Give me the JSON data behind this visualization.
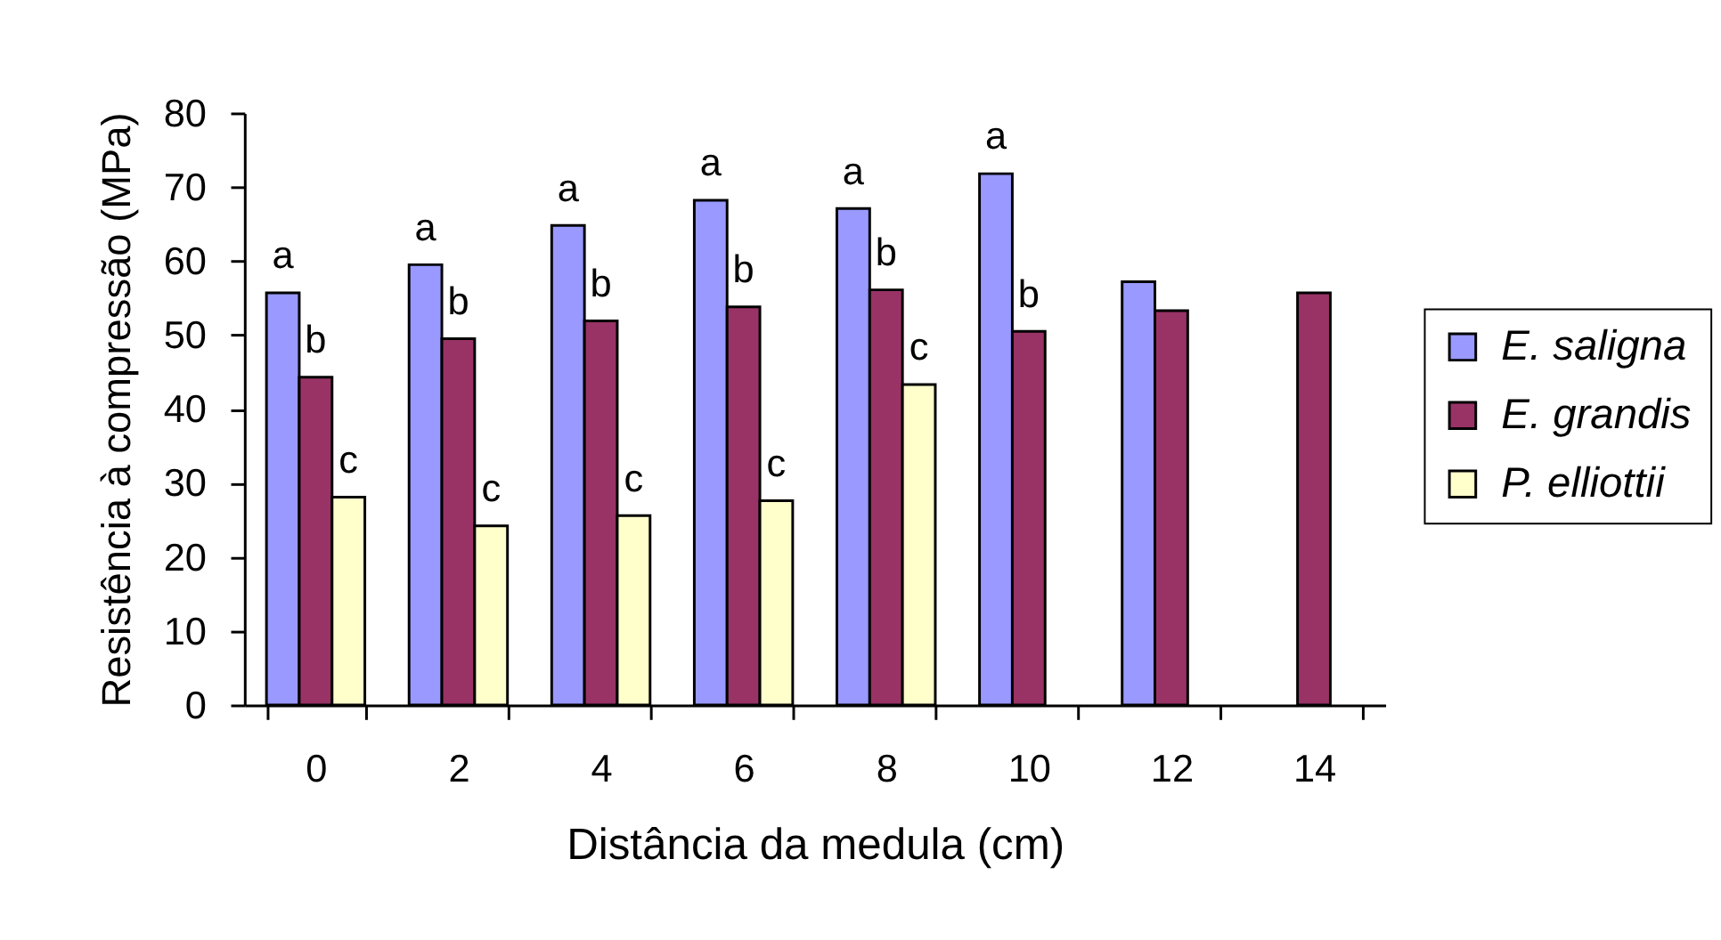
{
  "chart_data": {
    "type": "bar",
    "xlabel": "Distância da medula (cm)",
    "ylabel": "Resistência à compressão (MPa)",
    "categories": [
      "0",
      "2",
      "4",
      "6",
      "8",
      "10",
      "12",
      "14"
    ],
    "series": [
      {
        "name": "E. saligna",
        "color": "#9999ff",
        "values": [
          55.7,
          59.5,
          64.8,
          68.2,
          67.1,
          71.8,
          57.2,
          null
        ],
        "value_labels": [
          "a",
          "a",
          "a",
          "a",
          "a",
          "a",
          null,
          null
        ]
      },
      {
        "name": "E. grandis",
        "color": "#993366",
        "values": [
          44.3,
          49.5,
          51.9,
          53.8,
          56.1,
          50.5,
          53.3,
          55.7
        ],
        "value_labels": [
          "b",
          "b",
          "b",
          "b",
          "b",
          "b",
          null,
          null
        ]
      },
      {
        "name": "P. elliottii",
        "color": "#ffffcc",
        "values": [
          28.1,
          24.2,
          25.6,
          27.6,
          43.3,
          null,
          null,
          null
        ],
        "value_labels": [
          "c",
          "c",
          "c",
          "c",
          "c",
          null,
          null,
          null
        ]
      }
    ],
    "ylim": [
      0,
      80
    ],
    "yticks": [
      0,
      10,
      20,
      30,
      40,
      50,
      60,
      70,
      80
    ],
    "grid": false,
    "legend": "right"
  }
}
